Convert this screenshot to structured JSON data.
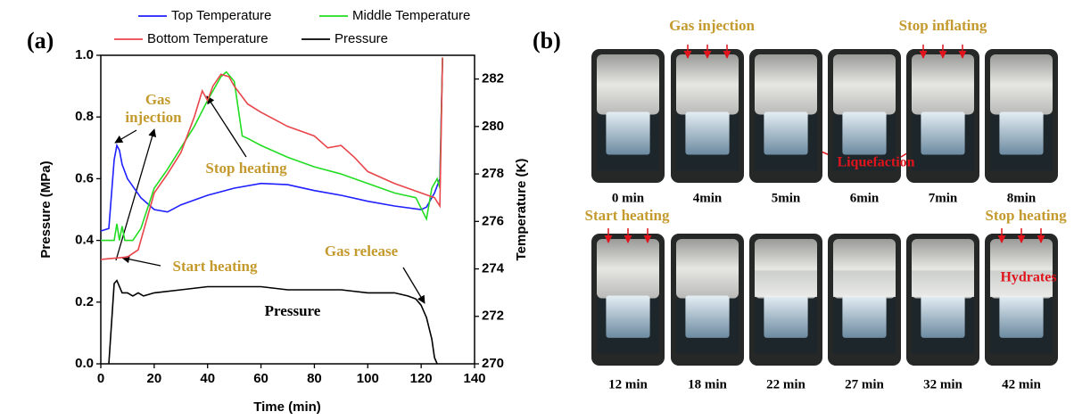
{
  "chart_data": {
    "type": "line",
    "panel_label": "(a)",
    "x_label": "Time (min)",
    "y_label": "Pressure (MPa)",
    "y2_label": "Temperature (K)",
    "xlim": [
      0,
      140
    ],
    "xticks": [
      0,
      20,
      40,
      60,
      80,
      100,
      120,
      140
    ],
    "ylim": [
      0,
      1
    ],
    "yticks": [
      {
        "value": 0,
        "label": "0.0"
      },
      0.2,
      0.4,
      0.6,
      0.8,
      {
        "value": 1,
        "label": "1.0"
      }
    ],
    "y2lim": [
      270,
      283
    ],
    "y2ticks": [
      270,
      272,
      274,
      276,
      278,
      280,
      282
    ],
    "legend": "top",
    "series": [
      {
        "name": "Top Temperature",
        "color": "#1f1fff",
        "axis": "y2",
        "x": [
          0,
          3,
          5,
          6,
          7,
          8,
          10,
          15,
          20,
          25,
          30,
          40,
          50,
          60,
          70,
          80,
          90,
          100,
          110,
          120,
          122,
          125,
          127,
          128
        ],
        "values": [
          275.6,
          275.7,
          278.6,
          279.2,
          279.0,
          278.4,
          277.8,
          277.0,
          276.5,
          276.4,
          276.7,
          277.1,
          277.4,
          277.6,
          277.55,
          277.3,
          277.1,
          276.85,
          276.65,
          276.5,
          276.6,
          277.2,
          277.8,
          282.9
        ]
      },
      {
        "name": "Middle Temperature",
        "color": "#22dd22",
        "axis": "y2",
        "x": [
          0,
          5,
          6,
          7,
          8,
          9,
          12,
          15,
          20,
          25,
          30,
          35,
          40,
          45,
          47,
          50,
          53,
          55,
          60,
          70,
          80,
          90,
          100,
          110,
          118,
          122,
          124,
          126,
          127,
          128
        ],
        "values": [
          275.2,
          275.2,
          275.9,
          275.2,
          275.8,
          275.2,
          275.2,
          275.7,
          277.4,
          278.2,
          279.1,
          280.0,
          281.1,
          282.1,
          282.3,
          281.9,
          279.6,
          279.5,
          279.2,
          278.7,
          278.3,
          278.0,
          277.6,
          277.2,
          277.0,
          276.1,
          277.4,
          277.8,
          277.4,
          282.9
        ]
      },
      {
        "name": "Bottom Temperature",
        "color": "#e8464b",
        "axis": "y2",
        "x": [
          0,
          10,
          14,
          20,
          25,
          30,
          35,
          38,
          40,
          42,
          45,
          48,
          50,
          55,
          60,
          70,
          80,
          85,
          90,
          95,
          100,
          110,
          120,
          125,
          127,
          128
        ],
        "values": [
          274.4,
          274.5,
          274.8,
          277.2,
          278.0,
          278.9,
          280.4,
          281.5,
          281.1,
          281.7,
          282.2,
          282.1,
          281.7,
          280.95,
          280.6,
          280.0,
          279.6,
          279.1,
          279.2,
          278.7,
          278.1,
          277.6,
          277.2,
          277.0,
          276.65,
          282.9
        ]
      },
      {
        "name": "Pressure",
        "color": "#000000",
        "x": [
          3,
          5,
          6,
          8,
          10,
          12,
          14,
          16,
          20,
          30,
          40,
          50,
          60,
          70,
          80,
          90,
          100,
          110,
          115,
          118,
          120,
          122,
          124,
          125,
          126
        ],
        "values": [
          0,
          0.26,
          0.27,
          0.23,
          0.23,
          0.22,
          0.23,
          0.22,
          0.23,
          0.24,
          0.25,
          0.25,
          0.25,
          0.24,
          0.24,
          0.24,
          0.23,
          0.23,
          0.22,
          0.21,
          0.19,
          0.15,
          0.08,
          0.02,
          0
        ]
      }
    ],
    "annotations": [
      "Gas",
      "injection",
      "Stop heating",
      "Start heating",
      "Gas release",
      "Pressure"
    ]
  },
  "panel_b": {
    "label": "(b)",
    "row1_times": [
      "0 min",
      "4min",
      "5min",
      "6min",
      "7min",
      "8min"
    ],
    "row2_times": [
      "12 min",
      "18 min",
      "22 min",
      "27 min",
      "32 min",
      "42 min"
    ],
    "annotations": {
      "gas_injection": "Gas injection",
      "stop_inflating": "Stop inflating",
      "liquefaction": "Liquefaction",
      "start_heating": "Start heating",
      "stop_heating": "Stop heating",
      "hydrates": "Hydrates"
    }
  }
}
